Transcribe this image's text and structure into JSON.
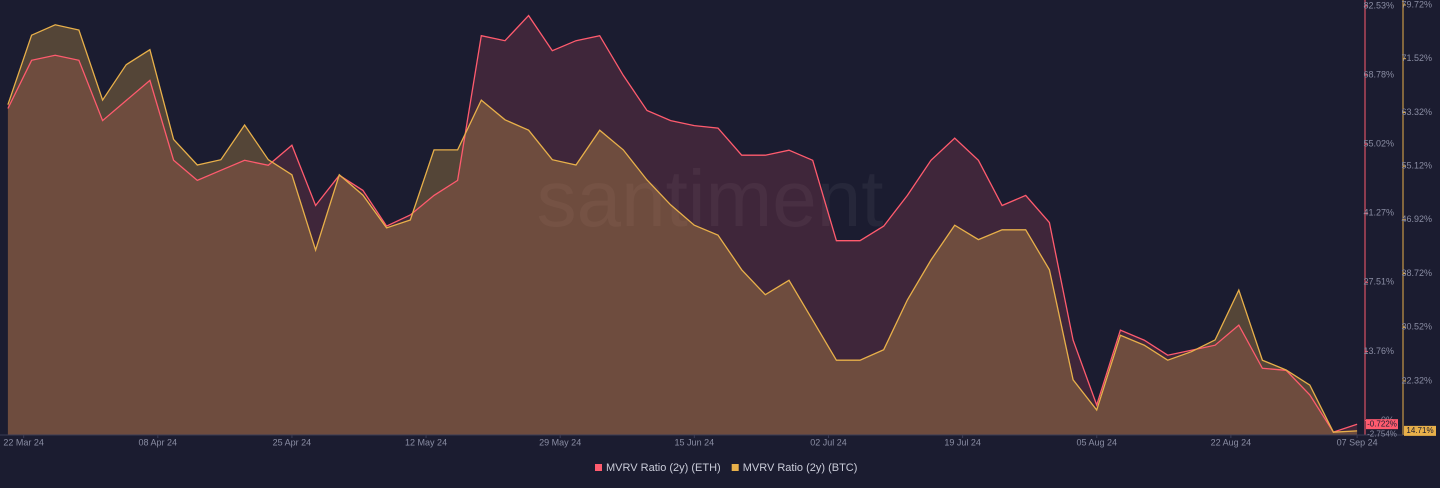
{
  "chart_data": {
    "type": "area",
    "watermark": "santiment",
    "x": [
      "2024-03-20",
      "2024-03-23",
      "2024-03-26",
      "2024-03-29",
      "2024-04-01",
      "2024-04-04",
      "2024-04-07",
      "2024-04-10",
      "2024-04-13",
      "2024-04-16",
      "2024-04-19",
      "2024-04-22",
      "2024-04-25",
      "2024-04-28",
      "2024-05-01",
      "2024-05-04",
      "2024-05-07",
      "2024-05-10",
      "2024-05-13",
      "2024-05-16",
      "2024-05-19",
      "2024-05-22",
      "2024-05-25",
      "2024-05-28",
      "2024-05-31",
      "2024-06-03",
      "2024-06-06",
      "2024-06-09",
      "2024-06-12",
      "2024-06-15",
      "2024-06-18",
      "2024-06-21",
      "2024-06-24",
      "2024-06-27",
      "2024-06-30",
      "2024-07-03",
      "2024-07-06",
      "2024-07-09",
      "2024-07-12",
      "2024-07-15",
      "2024-07-18",
      "2024-07-21",
      "2024-07-24",
      "2024-07-27",
      "2024-07-30",
      "2024-08-02",
      "2024-08-05",
      "2024-08-08",
      "2024-08-11",
      "2024-08-14",
      "2024-08-17",
      "2024-08-20",
      "2024-08-23",
      "2024-08-26",
      "2024-08-29",
      "2024-09-01",
      "2024-09-04",
      "2024-09-07"
    ],
    "xlim": [
      "2024-03-19",
      "2024-09-08"
    ],
    "xticks": [
      {
        "value": "2024-03-22",
        "label": "22 Mar 24"
      },
      {
        "value": "2024-04-08",
        "label": "08 Apr 24"
      },
      {
        "value": "2024-04-25",
        "label": "25 Apr 24"
      },
      {
        "value": "2024-05-12",
        "label": "12 May 24"
      },
      {
        "value": "2024-05-29",
        "label": "29 May 24"
      },
      {
        "value": "2024-06-15",
        "label": "15 Jun 24"
      },
      {
        "value": "2024-07-02",
        "label": "02 Jul 24"
      },
      {
        "value": "2024-07-19",
        "label": "19 Jul 24"
      },
      {
        "value": "2024-08-05",
        "label": "05 Aug 24"
      },
      {
        "value": "2024-08-22",
        "label": "22 Aug 24"
      },
      {
        "value": "2024-09-07",
        "label": "07 Sep 24"
      }
    ],
    "ylim": [
      -2.88,
      83.7
    ],
    "yticks": [
      {
        "value": 0,
        "label": "0%"
      },
      {
        "value": 13.76,
        "label": "13.76%"
      },
      {
        "value": 27.51,
        "label": "27.51%"
      },
      {
        "value": 41.27,
        "label": "41.27%"
      },
      {
        "value": 55.02,
        "label": "55.02%"
      },
      {
        "value": 68.78,
        "label": "68.78%"
      },
      {
        "value": 82.53,
        "label": "82.53%"
      }
    ],
    "y2lim": [
      14.08,
      80.48
    ],
    "y2ticks": [
      {
        "value": 22.32,
        "label": "22.32%"
      },
      {
        "value": 30.52,
        "label": "30.52%"
      },
      {
        "value": 38.72,
        "label": "38.72%"
      },
      {
        "value": 46.92,
        "label": "46.92%"
      },
      {
        "value": 55.12,
        "label": "55.12%"
      },
      {
        "value": 63.32,
        "label": "63.32%"
      },
      {
        "value": 71.52,
        "label": "71.52%"
      },
      {
        "value": 79.72,
        "label": "79.72%"
      }
    ],
    "series": [
      {
        "name": "MVRV Ratio (2y) (ETH)",
        "color": "#ff5b6e",
        "axis": "y",
        "values": [
          62.1,
          71.7,
          72.7,
          71.7,
          59.7,
          63.7,
          67.7,
          51.8,
          47.8,
          49.8,
          51.8,
          50.8,
          54.8,
          42.8,
          48.8,
          45.8,
          38.7,
          40.9,
          44.8,
          47.8,
          76.6,
          75.6,
          80.6,
          73.6,
          75.6,
          76.6,
          68.7,
          61.7,
          59.7,
          58.7,
          58.2,
          52.8,
          52.8,
          53.8,
          51.8,
          35.8,
          35.8,
          38.7,
          44.8,
          51.8,
          56.2,
          51.8,
          42.8,
          44.8,
          39.4,
          16.0,
          3.1,
          18.0,
          16.0,
          13.0,
          14.0,
          15.0,
          19.0,
          10.4,
          10.0,
          5.1,
          -2.3,
          -0.722
        ]
      },
      {
        "name": "MVRV Ratio (2y) (BTC)",
        "color": "#e8b04a",
        "axis": "y2",
        "values": [
          64.5,
          75.1,
          76.7,
          75.9,
          65.2,
          70.6,
          72.9,
          59.2,
          55.3,
          56.1,
          61.4,
          56.1,
          53.8,
          42.3,
          53.8,
          50.7,
          45.7,
          46.9,
          57.6,
          57.6,
          65.2,
          62.2,
          60.6,
          56.1,
          55.3,
          60.6,
          57.6,
          53.0,
          49.2,
          46.1,
          44.6,
          39.3,
          35.5,
          37.7,
          31.6,
          25.5,
          25.5,
          27.1,
          34.7,
          40.8,
          46.1,
          43.9,
          45.4,
          45.4,
          39.3,
          22.5,
          17.9,
          29.3,
          27.8,
          25.5,
          26.8,
          28.6,
          36.2,
          25.5,
          24.0,
          21.7,
          14.5,
          14.71
        ]
      }
    ],
    "annotations": [
      {
        "text": "-0.722%",
        "value": -0.722,
        "axis": "y",
        "color": "#ff5b6e"
      },
      {
        "text": "-2.754%",
        "value": -2.754,
        "axis": "y",
        "color": "#8a8da3"
      },
      {
        "text": "14.71%",
        "value": 14.71,
        "axis": "y2",
        "color": "#e8b04a"
      }
    ]
  }
}
